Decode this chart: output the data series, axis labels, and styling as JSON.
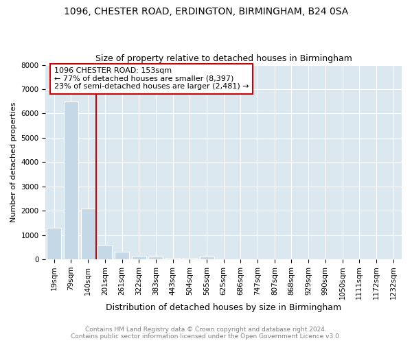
{
  "title1": "1096, CHESTER ROAD, ERDINGTON, BIRMINGHAM, B24 0SA",
  "title2": "Size of property relative to detached houses in Birmingham",
  "xlabel": "Distribution of detached houses by size in Birmingham",
  "ylabel": "Number of detached properties",
  "footer1": "Contains HM Land Registry data © Crown copyright and database right 2024.",
  "footer2": "Contains public sector information licensed under the Open Government Licence v3.0.",
  "property_label": "1096 CHESTER ROAD: 153sqm",
  "annotation_line1": "← 77% of detached houses are smaller (8,397)",
  "annotation_line2": "23% of semi-detached houses are larger (2,481) →",
  "bar_color": "#c5d8e8",
  "vline_color": "#cc0000",
  "annotation_box_edgecolor": "#cc0000",
  "background_color": "#dce8f0",
  "grid_color": "#ffffff",
  "categories": [
    "19sqm",
    "79sqm",
    "140sqm",
    "201sqm",
    "261sqm",
    "322sqm",
    "383sqm",
    "443sqm",
    "504sqm",
    "565sqm",
    "625sqm",
    "686sqm",
    "747sqm",
    "807sqm",
    "868sqm",
    "929sqm",
    "990sqm",
    "1050sqm",
    "1111sqm",
    "1172sqm",
    "1232sqm"
  ],
  "values": [
    1300,
    6500,
    2100,
    600,
    300,
    150,
    100,
    50,
    50,
    100,
    0,
    0,
    0,
    0,
    0,
    0,
    0,
    0,
    0,
    0,
    0
  ],
  "vline_x_index": 2,
  "vline_x_offset": 0.5,
  "ylim": [
    0,
    8000
  ],
  "yticks": [
    0,
    1000,
    2000,
    3000,
    4000,
    5000,
    6000,
    7000,
    8000
  ],
  "title1_fontsize": 10,
  "title2_fontsize": 9,
  "ylabel_fontsize": 8,
  "xlabel_fontsize": 9,
  "tick_fontsize": 7.5,
  "footer_fontsize": 6.5,
  "annotation_fontsize": 8
}
